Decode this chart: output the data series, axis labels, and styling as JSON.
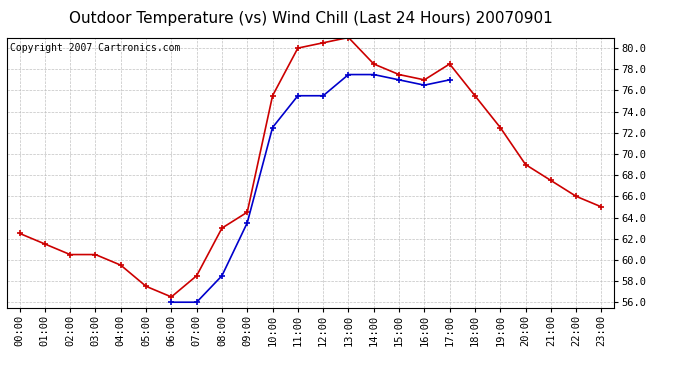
{
  "title": "Outdoor Temperature (vs) Wind Chill (Last 24 Hours) 20070901",
  "copyright": "Copyright 2007 Cartronics.com",
  "hours": [
    "00:00",
    "01:00",
    "02:00",
    "03:00",
    "04:00",
    "05:00",
    "06:00",
    "07:00",
    "08:00",
    "09:00",
    "10:00",
    "11:00",
    "12:00",
    "13:00",
    "14:00",
    "15:00",
    "16:00",
    "17:00",
    "18:00",
    "19:00",
    "20:00",
    "21:00",
    "22:00",
    "23:00"
  ],
  "temp": [
    62.5,
    61.5,
    60.5,
    60.5,
    59.5,
    57.5,
    56.5,
    58.5,
    63.0,
    64.5,
    75.5,
    80.0,
    80.5,
    81.0,
    78.5,
    77.5,
    77.0,
    78.5,
    75.5,
    72.5,
    69.0,
    67.5,
    66.0,
    65.0
  ],
  "wind_chill": [
    null,
    null,
    null,
    null,
    null,
    null,
    56.0,
    56.0,
    58.5,
    63.5,
    72.5,
    75.5,
    75.5,
    77.5,
    77.5,
    77.0,
    76.5,
    77.0,
    null,
    null,
    null,
    null,
    null,
    null
  ],
  "temp_color": "#cc0000",
  "wind_chill_color": "#0000cc",
  "bg_color": "#ffffff",
  "plot_bg_color": "#ffffff",
  "grid_color": "#bbbbbb",
  "ylim_min": 55.5,
  "ylim_max": 81.0,
  "yticks": [
    56.0,
    58.0,
    60.0,
    62.0,
    64.0,
    66.0,
    68.0,
    70.0,
    72.0,
    74.0,
    76.0,
    78.0,
    80.0
  ],
  "title_fontsize": 11,
  "copyright_fontsize": 7,
  "tick_fontsize": 7.5
}
